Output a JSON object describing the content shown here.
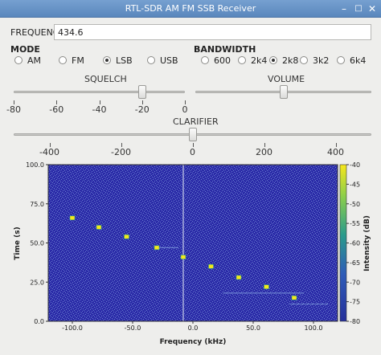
{
  "window": {
    "title": "RTL-SDR AM FM SSB Receiver",
    "min_icon": "minimize-icon",
    "max_icon": "maximize-icon",
    "close_icon": "close-icon"
  },
  "frequency": {
    "label": "FREQUENCY:",
    "value": "434.6"
  },
  "mode": {
    "title": "MODE",
    "options": [
      "AM",
      "FM",
      "LSB",
      "USB"
    ],
    "selected": "LSB"
  },
  "bandwidth": {
    "title": "BANDWIDTH",
    "options": [
      "600",
      "2k4",
      "2k8",
      "3k2",
      "6k4"
    ],
    "selected": "2k8"
  },
  "squelch": {
    "label": "SQUELCH",
    "min": -80,
    "max": 0,
    "value": -20,
    "ticks": [
      "-80",
      "-60",
      "-40",
      "-20",
      "0"
    ]
  },
  "volume": {
    "label": "VOLUME",
    "min": 0,
    "max": 1,
    "value": 0.5
  },
  "clarifier": {
    "label": "CLARIFIER",
    "min": -500,
    "max": 500,
    "value": 0,
    "ticks": [
      "-400",
      "-200",
      "0",
      "200",
      "400"
    ]
  },
  "chart_data": {
    "type": "heatmap",
    "xlabel": "Frequency (kHz)",
    "ylabel": "Time (s)",
    "colorbar_label": "Intensity (dB)",
    "xlim": [
      -120,
      120
    ],
    "ylim": [
      0,
      100
    ],
    "clim": [
      -80,
      -40
    ],
    "x_ticks": [
      "-100.0",
      "-50.0",
      "0.0",
      "50.0",
      "100.0"
    ],
    "y_ticks": [
      "0.0",
      "25.0",
      "50.0",
      "75.0",
      "100.0"
    ],
    "c_ticks": [
      "-40",
      "-45",
      "-50",
      "-55",
      "-60",
      "-65",
      "-70",
      "-75",
      "-80"
    ],
    "colors": {
      "low": "#2b2ba8",
      "noise": "#6a7fcf",
      "high": "#f5e81a",
      "mid": "#2f9c8a"
    },
    "center_line_x": -8,
    "signal_points": [
      {
        "x": -100,
        "y": 66
      },
      {
        "x": -78,
        "y": 60
      },
      {
        "x": -55,
        "y": 54
      },
      {
        "x": -30,
        "y": 47
      },
      {
        "x": -8,
        "y": 41
      },
      {
        "x": 15,
        "y": 35
      },
      {
        "x": 38,
        "y": 28
      },
      {
        "x": 61,
        "y": 22
      },
      {
        "x": 84,
        "y": 15
      }
    ],
    "streaks": [
      {
        "x1": -30,
        "x2": -12,
        "y": 47
      },
      {
        "x1": 25,
        "x2": 92,
        "y": 18
      },
      {
        "x1": 80,
        "x2": 112,
        "y": 11
      }
    ]
  }
}
